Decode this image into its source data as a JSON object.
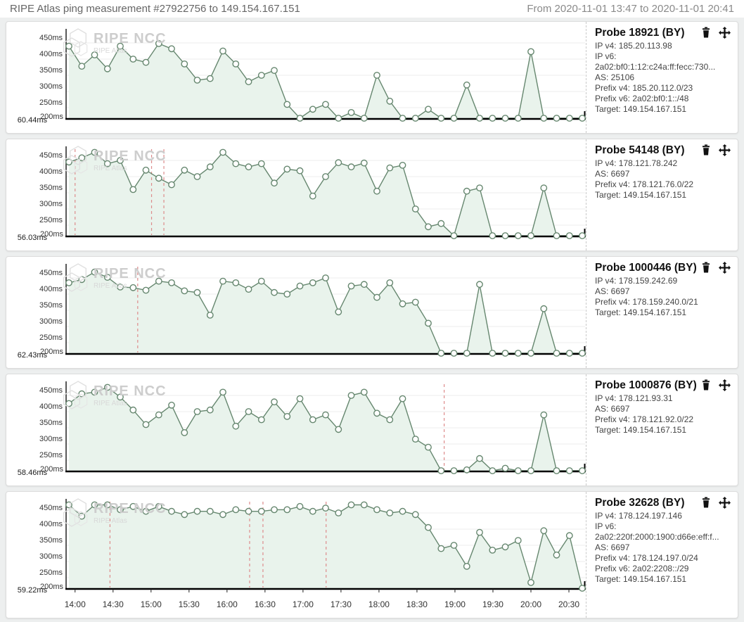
{
  "header": {
    "title": "RIPE Atlas ping measurement #27922756 to 149.154.167.151",
    "range": "From 2020-11-01 13:47 to 2020-11-01 20:41"
  },
  "watermark": {
    "brand": "RIPE NCC",
    "sub": "RIPE Atlas"
  },
  "icons": {
    "delete": "trash",
    "move": "move-cross"
  },
  "colors": {
    "line": "#66876f",
    "fill": "#e9f3ec",
    "marker_fill": "#ffffff",
    "event_line": "#dd8b8b",
    "baseline": "#000000",
    "grid": "#ededed",
    "watermark": "#cdcdcd"
  },
  "y_ticks": [
    "450ms",
    "400ms",
    "350ms",
    "300ms",
    "250ms",
    "200ms"
  ],
  "x_ticks": [
    "14:00",
    "14:30",
    "15:00",
    "15:30",
    "16:00",
    "16:30",
    "17:00",
    "17:30",
    "18:00",
    "18:30",
    "19:00",
    "19:30",
    "20:00",
    "20:30"
  ],
  "x_range": {
    "start": "13:47",
    "end": "20:41"
  },
  "chart_data": [
    {
      "type": "line",
      "probe": "Probe 18921 (BY)",
      "info": [
        "IP v4: 185.20.113.98",
        "IP v6:",
        "2a02:bf0:1:12:c24a:ff:fecc:730...",
        "AS: 25106",
        "Prefix v4: 185.20.112.0/23",
        "Prefix v6: 2a02:bf0:1::/48",
        "Target: 149.154.167.151"
      ],
      "ylabel_unit": "ms",
      "min_label": "60.44ms",
      "min_value": 60.44,
      "values": [
        440,
        378,
        413,
        370,
        440,
        400,
        390,
        448,
        432,
        385,
        335,
        340,
        425,
        385,
        330,
        350,
        365,
        260,
        60.44,
        245,
        260,
        60.44,
        235,
        60.44,
        350,
        270,
        60.44,
        60.44,
        245,
        60.44,
        60.44,
        320,
        60.44,
        60.44,
        60.44,
        60.44,
        423,
        60.44,
        60.44,
        60.44,
        60.44
      ],
      "event_lines": []
    },
    {
      "type": "line",
      "probe": "Probe 54148 (BY)",
      "info": [
        "IP v4: 178.121.78.242",
        "AS: 6697",
        "Prefix v4: 178.121.76.0/22",
        "Target: 149.154.167.151"
      ],
      "ylabel_unit": "ms",
      "min_label": "56.03ms",
      "min_value": 56.03,
      "values": [
        445,
        458,
        475,
        440,
        450,
        360,
        420,
        395,
        375,
        420,
        400,
        430,
        475,
        440,
        430,
        440,
        380,
        423,
        418,
        340,
        400,
        443,
        430,
        442,
        355,
        427,
        435,
        300,
        245,
        255,
        56.03,
        355,
        365,
        56.03,
        56.03,
        56.03,
        56.03,
        365,
        56.03,
        56.03,
        56.03
      ],
      "event_lines": [
        0.012,
        0.161,
        0.185
      ]
    },
    {
      "type": "line",
      "probe": "Probe 1000446 (BY)",
      "info": [
        "IP v4: 178.159.242.69",
        "AS: 6697",
        "Prefix v4: 178.159.240.0/21",
        "Target: 149.154.167.151"
      ],
      "ylabel_unit": "ms",
      "min_label": "62.43ms",
      "min_value": 62.43,
      "values": [
        435,
        445,
        468,
        452,
        422,
        420,
        412,
        440,
        435,
        410,
        405,
        335,
        440,
        435,
        415,
        440,
        405,
        400,
        425,
        435,
        450,
        345,
        425,
        430,
        390,
        435,
        370,
        375,
        310,
        62.43,
        62.43,
        62.43,
        430,
        62.43,
        62.43,
        62.43,
        62.43,
        355,
        62.43,
        62.43,
        62.43
      ],
      "event_lines": [
        0.134
      ]
    },
    {
      "type": "line",
      "probe": "Probe 1000876 (BY)",
      "info": [
        "IP v4: 178.121.93.31",
        "AS: 6697",
        "Prefix v4: 178.121.92.0/22",
        "Target: 149.154.167.151"
      ],
      "ylabel_unit": "ms",
      "min_label": "58.46ms",
      "min_value": 58.46,
      "values": [
        425,
        455,
        460,
        475,
        445,
        405,
        360,
        390,
        420,
        335,
        400,
        405,
        460,
        355,
        400,
        375,
        430,
        385,
        440,
        375,
        390,
        345,
        450,
        460,
        395,
        375,
        440,
        315,
        290,
        58.46,
        58.46,
        220,
        255,
        58.46,
        225,
        58.46,
        58.46,
        390,
        58.46,
        58.46,
        58.46
      ],
      "event_lines": [
        0.731
      ]
    },
    {
      "type": "line",
      "probe": "Probe 32628 (BY)",
      "info": [
        "IP v4: 178.124.197.146",
        "IP v6:",
        "2a02:220f:2000:1900:d66e:eff:f...",
        "AS: 6697",
        "Prefix v4: 178.124.197.0/24",
        "Prefix v6: 2a02:2208::/29",
        "Target: 149.154.167.151"
      ],
      "ylabel_unit": "ms",
      "min_label": "59.22ms",
      "min_value": 59.22,
      "values": [
        475,
        440,
        475,
        475,
        460,
        470,
        455,
        470,
        455,
        445,
        455,
        455,
        445,
        460,
        455,
        455,
        460,
        460,
        470,
        455,
        465,
        450,
        475,
        475,
        460,
        450,
        455,
        445,
        405,
        340,
        350,
        285,
        390,
        335,
        345,
        365,
        235,
        395,
        320,
        380,
        59.22
      ],
      "event_lines": [
        0.08,
        0.352,
        0.378,
        0.501
      ]
    }
  ]
}
